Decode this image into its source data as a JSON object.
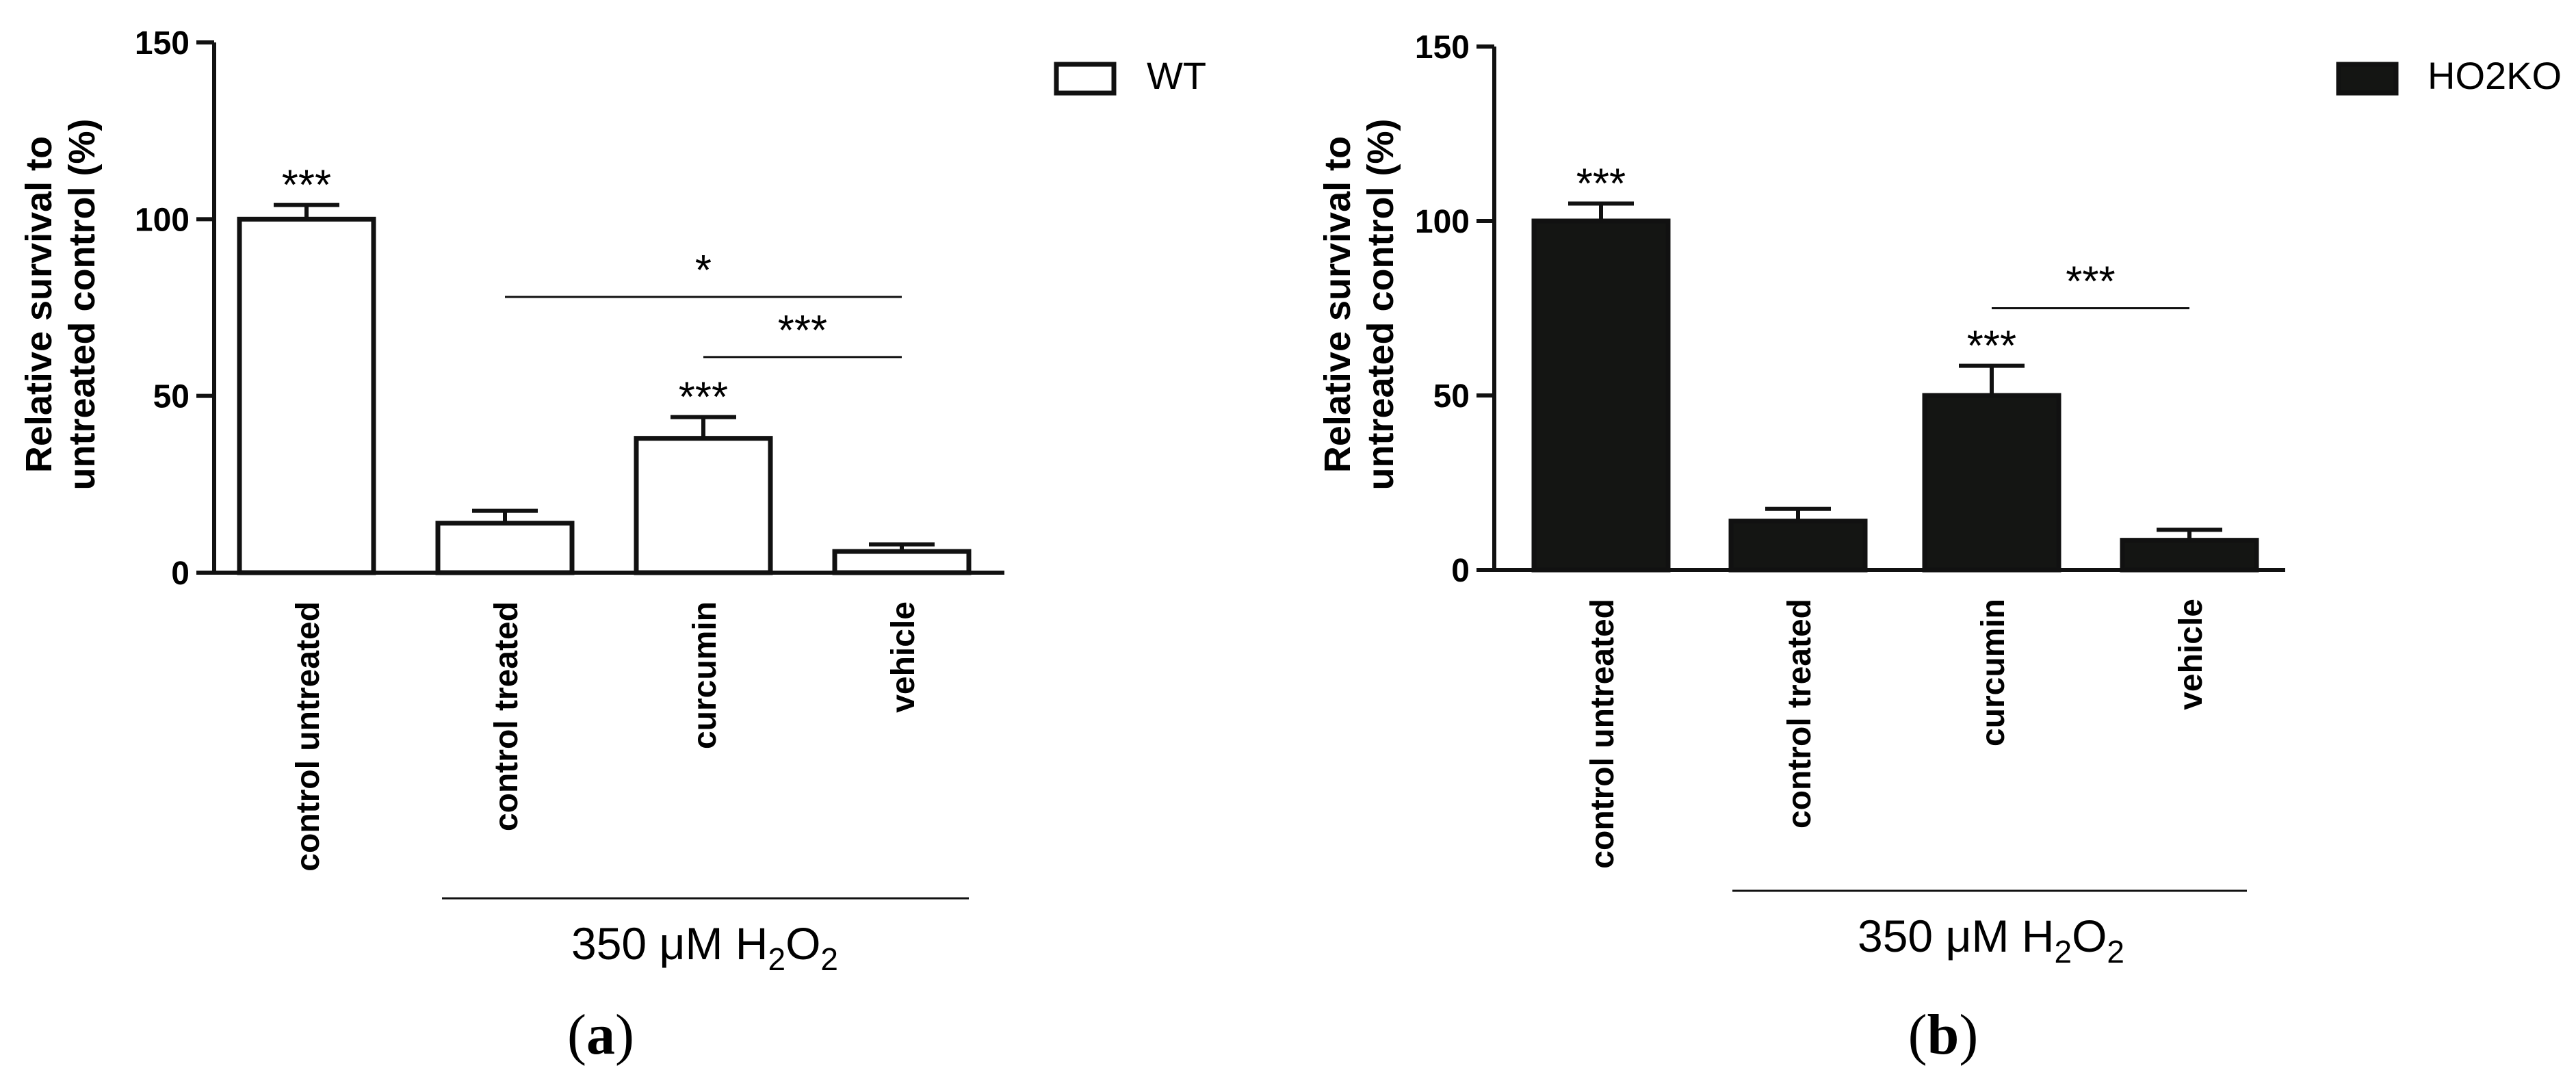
{
  "chart_data": [
    {
      "type": "bar",
      "panel_label": {
        "open": "(",
        "letter": "a",
        "close": ")"
      },
      "ylabel_lines": [
        "Relative survival to",
        "untreated control (%)"
      ],
      "ylim": [
        0,
        150
      ],
      "yticks": [
        0,
        50,
        100,
        150
      ],
      "categories": [
        "control untreated",
        "control treated",
        "curcumin",
        "vehicle"
      ],
      "series": [
        {
          "name": "WT",
          "values": [
            100,
            14,
            38,
            6
          ],
          "errors": [
            4,
            3.5,
            6,
            2
          ],
          "fill": "#ffffff",
          "stroke": "#111111"
        }
      ],
      "significance": [
        {
          "category": "control untreated",
          "text": "***"
        },
        {
          "category": "curcumin",
          "text": "***"
        }
      ],
      "comparisons": [
        {
          "from": "control treated",
          "to": "vehicle",
          "text": "*",
          "level": 78
        },
        {
          "from": "curcumin",
          "to": "vehicle",
          "text": "***",
          "level": 61
        }
      ],
      "group": {
        "from": "control treated",
        "to": "vehicle",
        "prefix": "350 μM  H",
        "sub": "2",
        "mid": "O",
        "sub2": "2"
      },
      "legend_position": "top-right"
    },
    {
      "type": "bar",
      "panel_label": {
        "open": "(",
        "letter": "b",
        "close": ")"
      },
      "ylabel_lines": [
        "Relative survival to",
        "untreated control (%)"
      ],
      "ylim": [
        0,
        150
      ],
      "yticks": [
        0,
        50,
        100,
        150
      ],
      "categories": [
        "control untreated",
        "control treated",
        "curcumin",
        "vehicle"
      ],
      "series": [
        {
          "name": "HO2KO",
          "values": [
            100,
            14,
            50,
            8.5
          ],
          "errors": [
            5,
            3.5,
            8.5,
            3
          ],
          "fill": "#141513",
          "stroke": "#111111"
        }
      ],
      "significance": [
        {
          "category": "control untreated",
          "text": "***"
        },
        {
          "category": "curcumin",
          "text": "***"
        }
      ],
      "comparisons": [
        {
          "from": "curcumin",
          "to": "vehicle",
          "text": "***",
          "level": 75
        }
      ],
      "group": {
        "from": "control treated",
        "to": "vehicle",
        "prefix": "350 μM  H",
        "sub": "2",
        "mid": "O",
        "sub2": "2"
      },
      "legend_position": "top-right"
    }
  ]
}
